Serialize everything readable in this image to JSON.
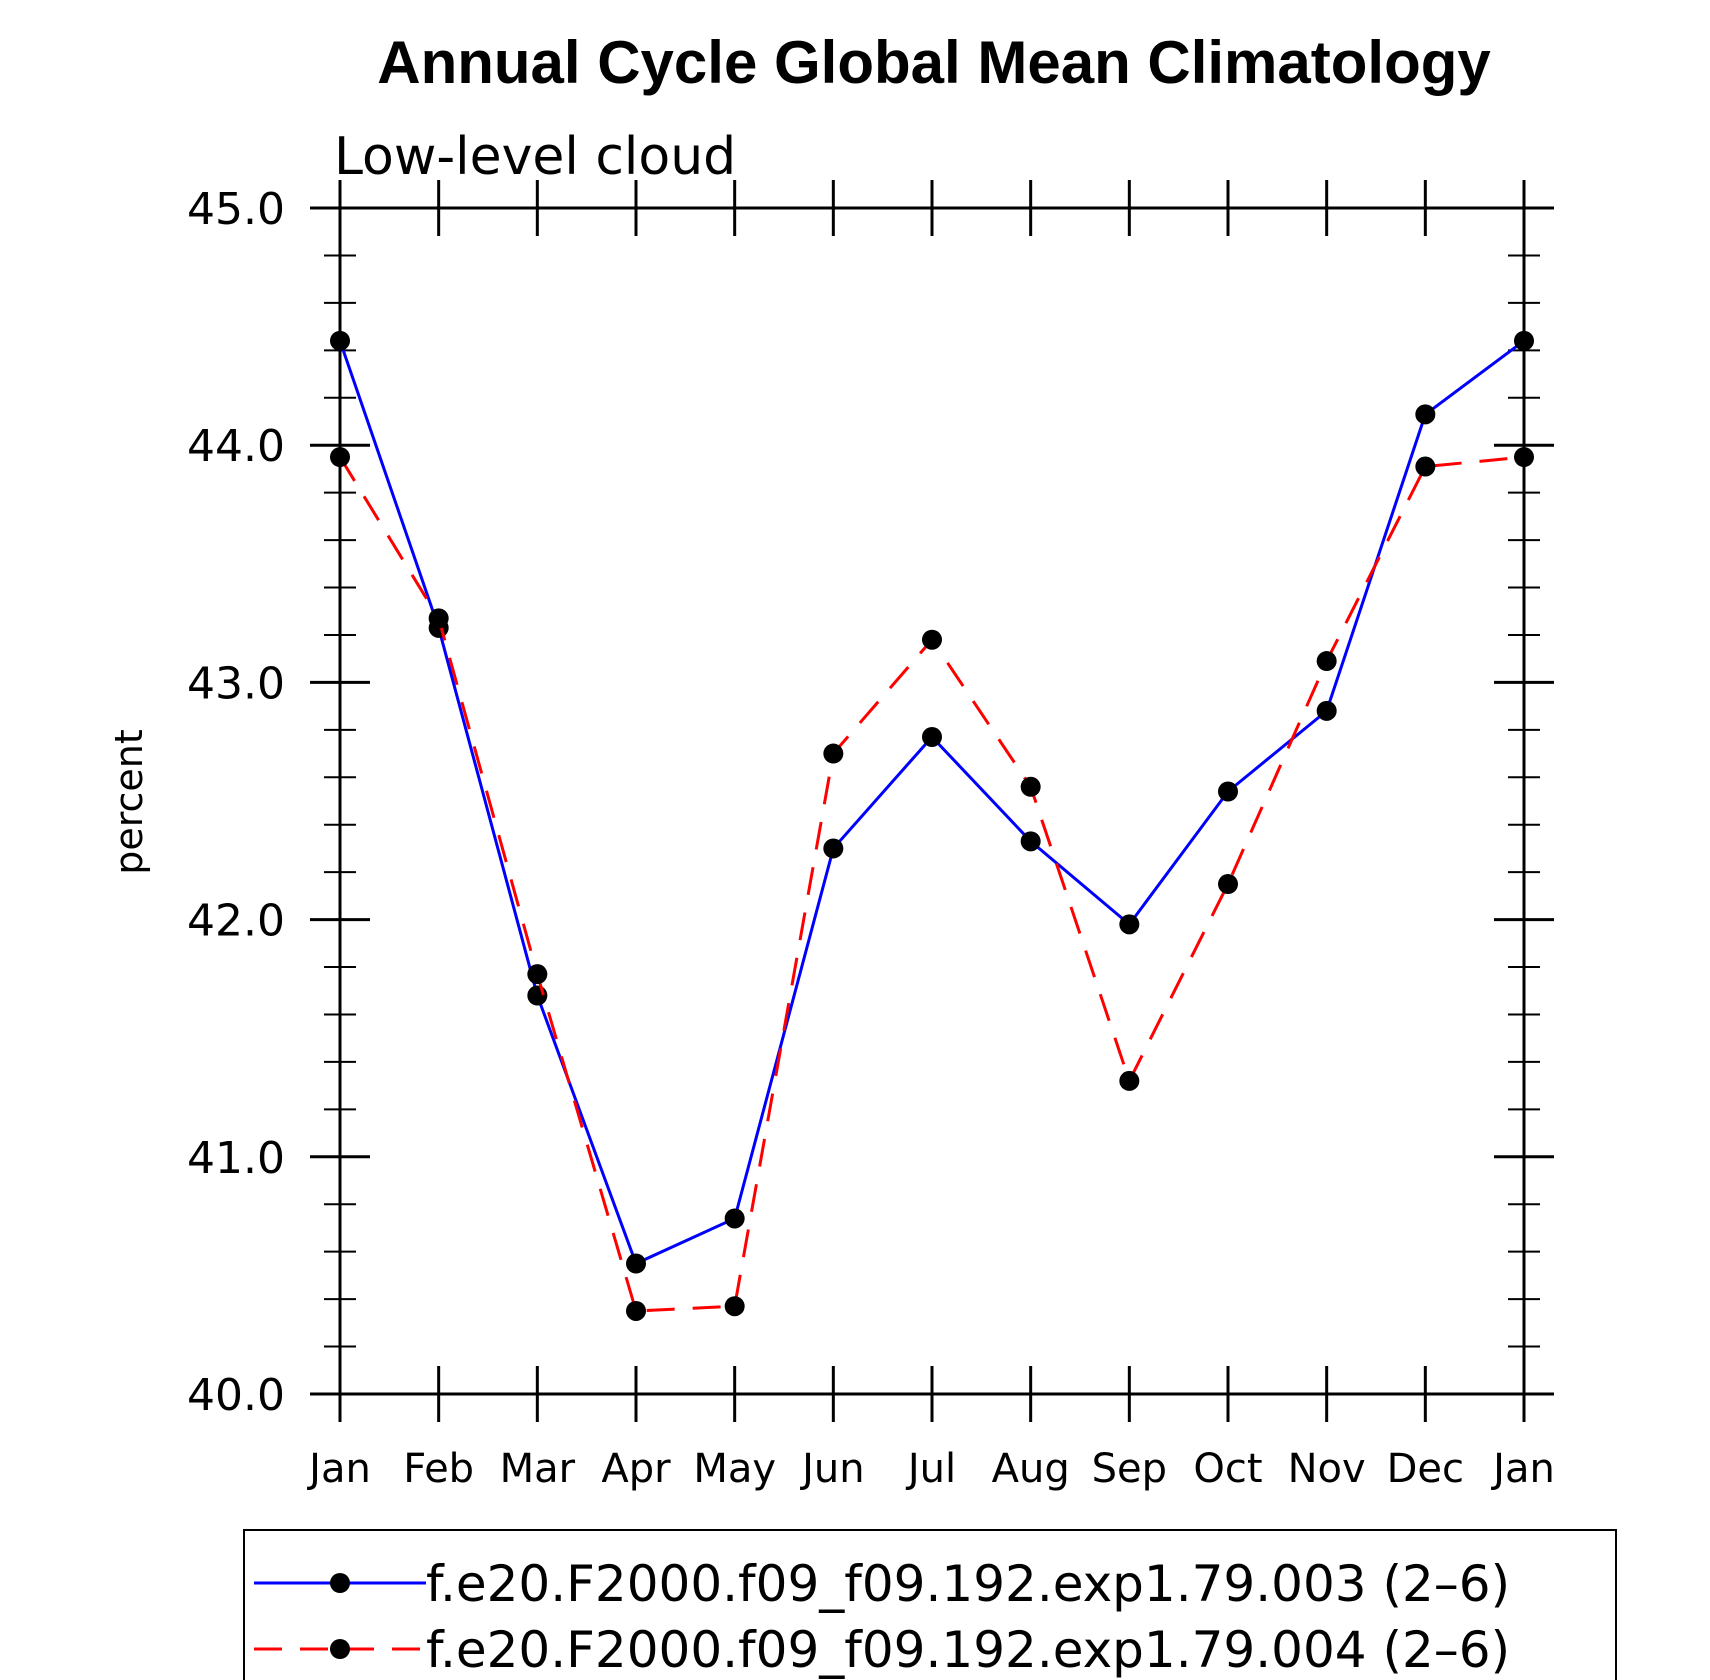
{
  "chart_data": {
    "type": "line",
    "title": "Annual Cycle Global Mean Climatology",
    "subtitle": "Low-level cloud",
    "xlabel": "",
    "ylabel": "percent",
    "categories": [
      "Jan",
      "Feb",
      "Mar",
      "Apr",
      "May",
      "Jun",
      "Jul",
      "Aug",
      "Sep",
      "Oct",
      "Nov",
      "Dec",
      "Jan"
    ],
    "ylim": [
      40.0,
      45.0
    ],
    "yticks": [
      "40.0",
      "41.0",
      "42.0",
      "43.0",
      "44.0",
      "45.0"
    ],
    "grid": false,
    "legend_position": "bottom",
    "series": [
      {
        "name": "f.e20.F2000.f09_f09.192.exp1.79.003 (2–6)",
        "color": "#0000ff",
        "linestyle": "solid",
        "marker": "filled-circle",
        "values": [
          44.44,
          43.23,
          41.68,
          40.55,
          40.74,
          42.3,
          42.77,
          42.33,
          41.98,
          42.54,
          42.88,
          44.13,
          44.44
        ]
      },
      {
        "name": "f.e20.F2000.f09_f09.192.exp1.79.004 (2–6)",
        "color": "#ff0000",
        "linestyle": "dashed",
        "marker": "filled-circle",
        "values": [
          43.95,
          43.27,
          41.77,
          40.35,
          40.37,
          42.7,
          43.18,
          42.56,
          41.32,
          42.15,
          43.09,
          43.91,
          43.95
        ]
      }
    ]
  }
}
